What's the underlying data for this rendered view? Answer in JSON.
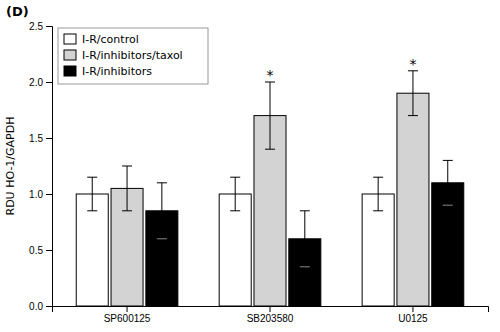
{
  "chart_data": {
    "type": "bar",
    "title": "(D)",
    "categories": [
      "SP600125",
      "SB203580",
      "U0125"
    ],
    "series": [
      {
        "name": "I-R/control",
        "color": "white",
        "values": [
          1.0,
          1.0,
          1.0
        ],
        "errors": [
          0.15,
          0.15,
          0.15
        ]
      },
      {
        "name": "I-R/inhibitors/taxol",
        "color": "lightgray",
        "values": [
          1.05,
          1.7,
          1.9
        ],
        "errors": [
          0.2,
          0.3,
          0.2
        ]
      },
      {
        "name": "I-R/inhibitors",
        "color": "black",
        "values": [
          0.85,
          0.6,
          1.1
        ],
        "errors": [
          0.25,
          0.25,
          0.2
        ]
      }
    ],
    "annotations": [
      {
        "text": "*",
        "category": "SB203580",
        "series": "I-R/inhibitors/taxol"
      },
      {
        "text": "*",
        "category": "U0125",
        "series": "I-R/inhibitors/taxol"
      }
    ],
    "ylabel": "RDU HO-1/GAPDH",
    "ylim": [
      0.0,
      2.5
    ],
    "yticks": [
      {
        "value": 0,
        "label": "0.0"
      },
      0.5,
      {
        "value": 1,
        "label": "1.0"
      },
      1.5,
      {
        "value": 2,
        "label": "2.0"
      },
      2.5
    ],
    "legend": "top-left",
    "grid": false
  }
}
